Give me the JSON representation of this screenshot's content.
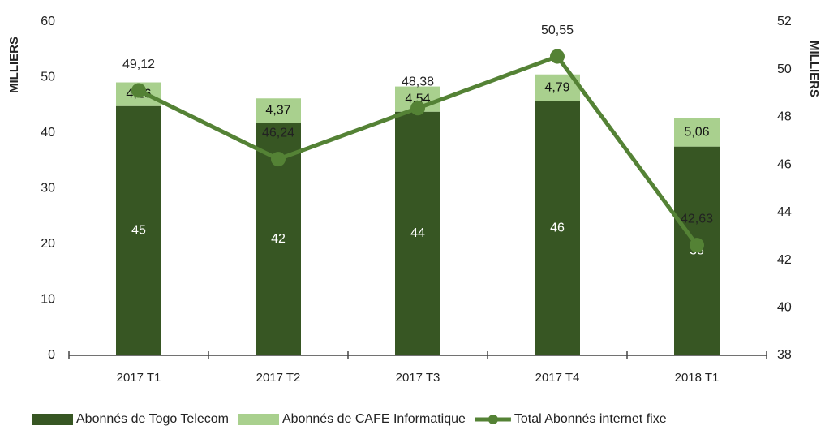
{
  "chart_data": {
    "type": "bar",
    "y_label": "MILLIERS",
    "y2_label": "MILLIERS",
    "categories": [
      "2017 T1",
      "2017 T2",
      "2017 T3",
      "2017 T4",
      "2018 T1"
    ],
    "series": [
      {
        "name": "Abonnés de Togo Telecom",
        "color": "#375623",
        "values": [
          44.86,
          41.87,
          43.84,
          45.76,
          37.57
        ],
        "value_labels": [
          "45",
          "42",
          "44",
          "46",
          "38"
        ]
      },
      {
        "name": "Abonnés de CAFE Informatique",
        "color": "#a9d08e",
        "values": [
          4.26,
          4.37,
          4.54,
          4.79,
          5.06
        ],
        "value_labels": [
          "4,26",
          "4,37",
          "4,54",
          "4,79",
          "5,06"
        ]
      },
      {
        "name": "Total Abonnés internet fixe",
        "color": "#548235",
        "type": "line",
        "axis": "y2",
        "values": [
          49.12,
          46.24,
          48.38,
          50.55,
          42.63
        ],
        "value_labels": [
          "49,12",
          "46,24",
          "48,38",
          "50,55",
          "42,63"
        ]
      }
    ],
    "ylim": [
      0,
      60
    ],
    "yticks": [
      0,
      10,
      20,
      30,
      40,
      50,
      60
    ],
    "y2lim": [
      38,
      52
    ],
    "y2ticks": [
      38,
      40,
      42,
      44,
      46,
      48,
      50,
      52
    ],
    "legend": "bottom"
  }
}
